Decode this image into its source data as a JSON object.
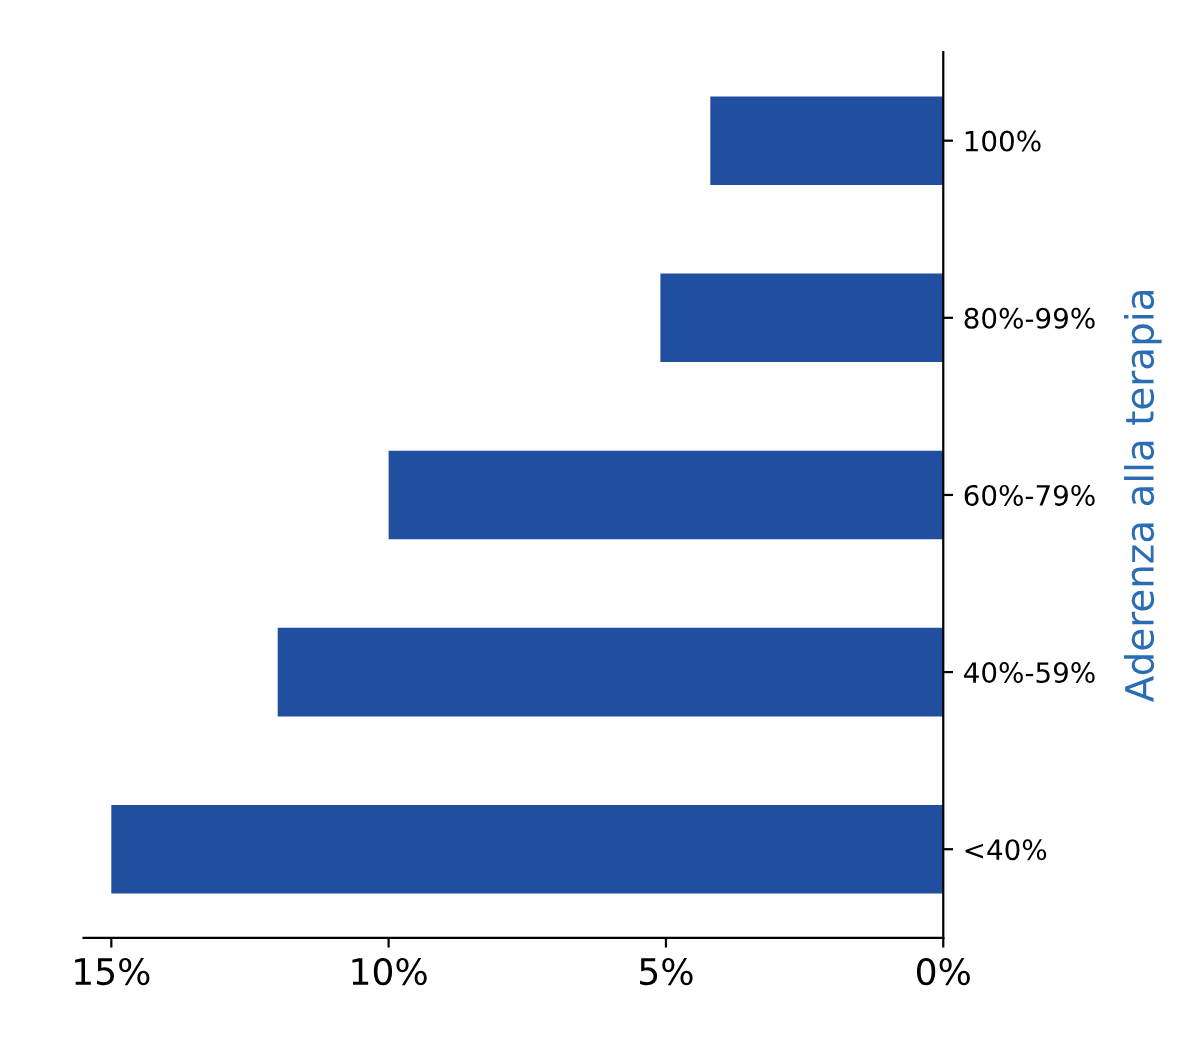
{
  "chart_data": {
    "type": "bar",
    "orientation": "horizontal",
    "ylabel": "Aderenza alla terapia",
    "categories": [
      "100%",
      "80%-99%",
      "60%-79%",
      "40%-59%",
      "<40%"
    ],
    "values": [
      4.2,
      5.1,
      10.0,
      12.0,
      15.0
    ],
    "color": "#1f4f9e",
    "xlim": [
      15.5,
      0
    ],
    "xticks": [
      {
        "value": 15,
        "label": "15%"
      },
      {
        "value": 10,
        "label": "10%"
      },
      {
        "value": 5,
        "label": "5%"
      },
      {
        "value": 0,
        "label": "0%"
      }
    ],
    "grid": false
  }
}
